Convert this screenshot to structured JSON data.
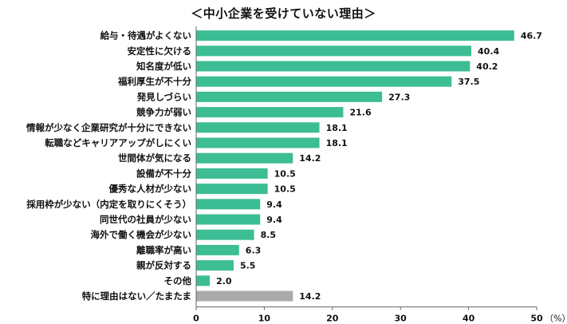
{
  "chart_data": {
    "type": "bar",
    "orientation": "horizontal",
    "title": "＜中小企業を受けていない理由＞",
    "categories": [
      "給与・待遇がよくない",
      "安定性に欠ける",
      "知名度が低い",
      "福利厚生が不十分",
      "発見しづらい",
      "競争力が弱い",
      "情報が少なく企業研究が十分にできない",
      "転職などキャリアアップがしにくい",
      "世間体が気になる",
      "設備が不十分",
      "優秀な人材が少ない",
      "採用枠が少ない（内定を取りにくそう）",
      "同世代の社員が少ない",
      "海外で働く機会が少ない",
      "離職率が高い",
      "親が反対する",
      "その他",
      "特に理由はない／たまたま"
    ],
    "values": [
      46.7,
      40.4,
      40.2,
      37.5,
      27.3,
      21.6,
      18.1,
      18.1,
      14.2,
      10.5,
      10.5,
      9.4,
      9.4,
      8.5,
      6.3,
      5.5,
      2.0,
      14.2
    ],
    "value_labels": [
      "46.7",
      "40.4",
      "40.2",
      "37.5",
      "27.3",
      "21.6",
      "18.1",
      "18.1",
      "14.2",
      "10.5",
      "10.5",
      "9.4",
      "9.4",
      "8.5",
      "6.3",
      "5.5",
      "2.0",
      "14.2"
    ],
    "bar_colors": [
      "#3dbd94",
      "#3dbd94",
      "#3dbd94",
      "#3dbd94",
      "#3dbd94",
      "#3dbd94",
      "#3dbd94",
      "#3dbd94",
      "#3dbd94",
      "#3dbd94",
      "#3dbd94",
      "#3dbd94",
      "#3dbd94",
      "#3dbd94",
      "#3dbd94",
      "#3dbd94",
      "#3dbd94",
      "#aaaaaa"
    ],
    "xlim": [
      0,
      50
    ],
    "xticks": [
      "0",
      "10",
      "20",
      "30",
      "40",
      "50"
    ],
    "x_unit": "（%）",
    "grid": false
  }
}
